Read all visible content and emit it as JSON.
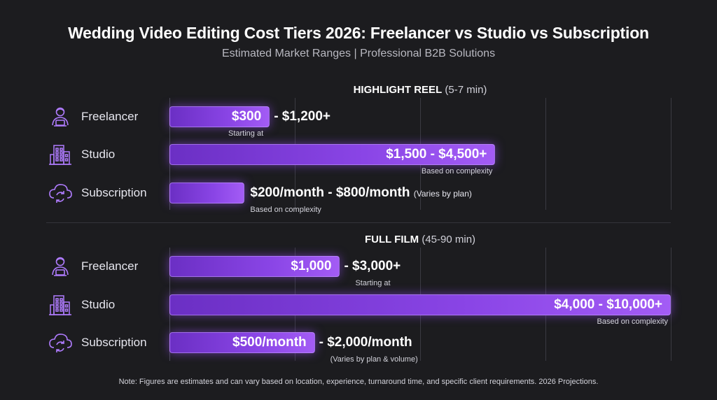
{
  "title": "Wedding Video Editing Cost Tiers 2026: Freelancer vs Studio vs Subscription",
  "subtitle": "Estimated Market Ranges | Professional B2B Solutions",
  "footnote": "Note: Figures are estimates and can vary based on location, experience, turnaround time, and specific client requirements. 2026 Projections.",
  "colors": {
    "bar": "#8a45e6",
    "bar_glow": "#a35cf5",
    "background": "#1c1c1f",
    "icon": "#b07cff"
  },
  "chart_data": [
    {
      "type": "bar",
      "orientation": "horizontal",
      "title": "HIGHLIGHT REEL",
      "title_detail": "(5-7 min)",
      "categories": [
        "Freelancer",
        "Studio",
        "Subscription"
      ],
      "icons": [
        "freelancer-icon",
        "studio-building-icon",
        "subscription-cloud-icon"
      ],
      "range_labels": [
        {
          "start": "$300",
          "end": "- $1,200+",
          "note": "",
          "sub": "Starting at"
        },
        {
          "start": "$1,500 - $4,500+",
          "end": "",
          "note": "",
          "sub": "Based on complexity"
        },
        {
          "start": "",
          "end": "$200/month - $800/month",
          "note": "(Varies by plan)",
          "sub": "Based on complexity"
        }
      ],
      "values": [
        0.2,
        0.65,
        0.15
      ],
      "grid": true
    },
    {
      "type": "bar",
      "orientation": "horizontal",
      "title": "FULL FILM",
      "title_detail": "(45-90 min)",
      "categories": [
        "Freelancer",
        "Studio",
        "Subscription"
      ],
      "icons": [
        "freelancer-icon",
        "studio-building-icon",
        "subscription-cloud-icon"
      ],
      "range_labels": [
        {
          "start": "$1,000",
          "end": "- $3,000+",
          "note": "",
          "sub": "Starting at"
        },
        {
          "start": "$4,000 - $10,000+",
          "end": "",
          "note": "",
          "sub": "Based on complexity"
        },
        {
          "start": "$500/month",
          "end": "- $2,000/month",
          "note": "",
          "sub": "(Varies by plan & volume)"
        }
      ],
      "values": [
        0.34,
        1.0,
        0.29
      ],
      "grid": true
    }
  ]
}
